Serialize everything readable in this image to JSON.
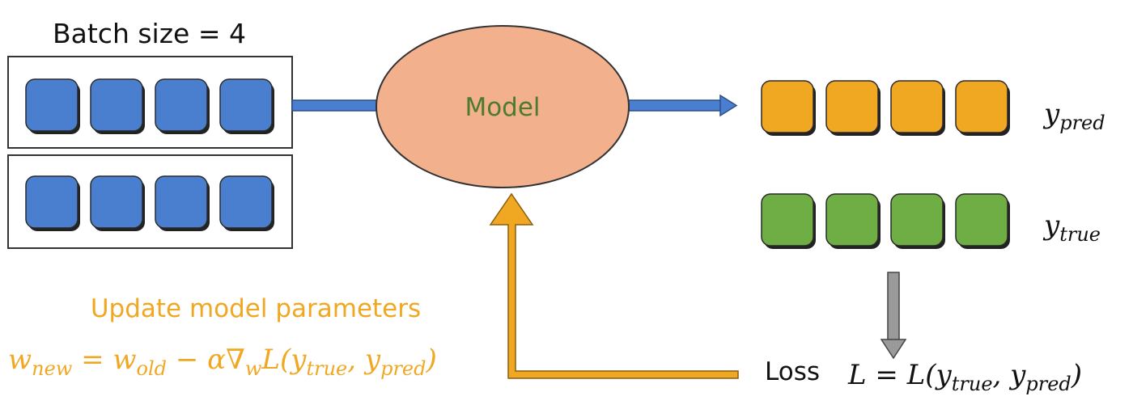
{
  "batch": {
    "label": "Batch size = 4",
    "rows": 2,
    "items_per_row": 4,
    "color": "#4a7fcf"
  },
  "model": {
    "label": "Model",
    "fill": "#f3b08d",
    "text_color": "#4c7a2e"
  },
  "outputs": {
    "pred": {
      "count": 4,
      "color": "#f0a823",
      "label_base": "y",
      "label_sub": "pred"
    },
    "true": {
      "count": 4,
      "color": "#6fae45",
      "label_base": "y",
      "label_sub": "true"
    }
  },
  "loss": {
    "label": "Loss",
    "eq_lhs": "L",
    "eq_eq": " = ",
    "eq_fn": "L(",
    "eq_arg1_base": "y",
    "eq_arg1_sub": "true",
    "eq_comma": ", ",
    "eq_arg2_base": "y",
    "eq_arg2_sub": "pred",
    "eq_close": ")"
  },
  "update": {
    "title": "Update model parameters",
    "color": "#f0a823",
    "w_new_base": "w",
    "w_new_sub": "new",
    "eq": " = ",
    "w_old_base": "w",
    "w_old_sub": "old",
    "minus": " − α∇",
    "grad_sub": "w",
    "fn": "L(",
    "arg1_base": "y",
    "arg1_sub": "true",
    "comma": ", ",
    "arg2_base": "y",
    "arg2_sub": "pred",
    "close": ")"
  },
  "colors": {
    "arrow_blue": "#4a7fcf",
    "arrow_orange": "#f0a823",
    "arrow_grey": "#9a9a9a",
    "outline": "#333333"
  }
}
